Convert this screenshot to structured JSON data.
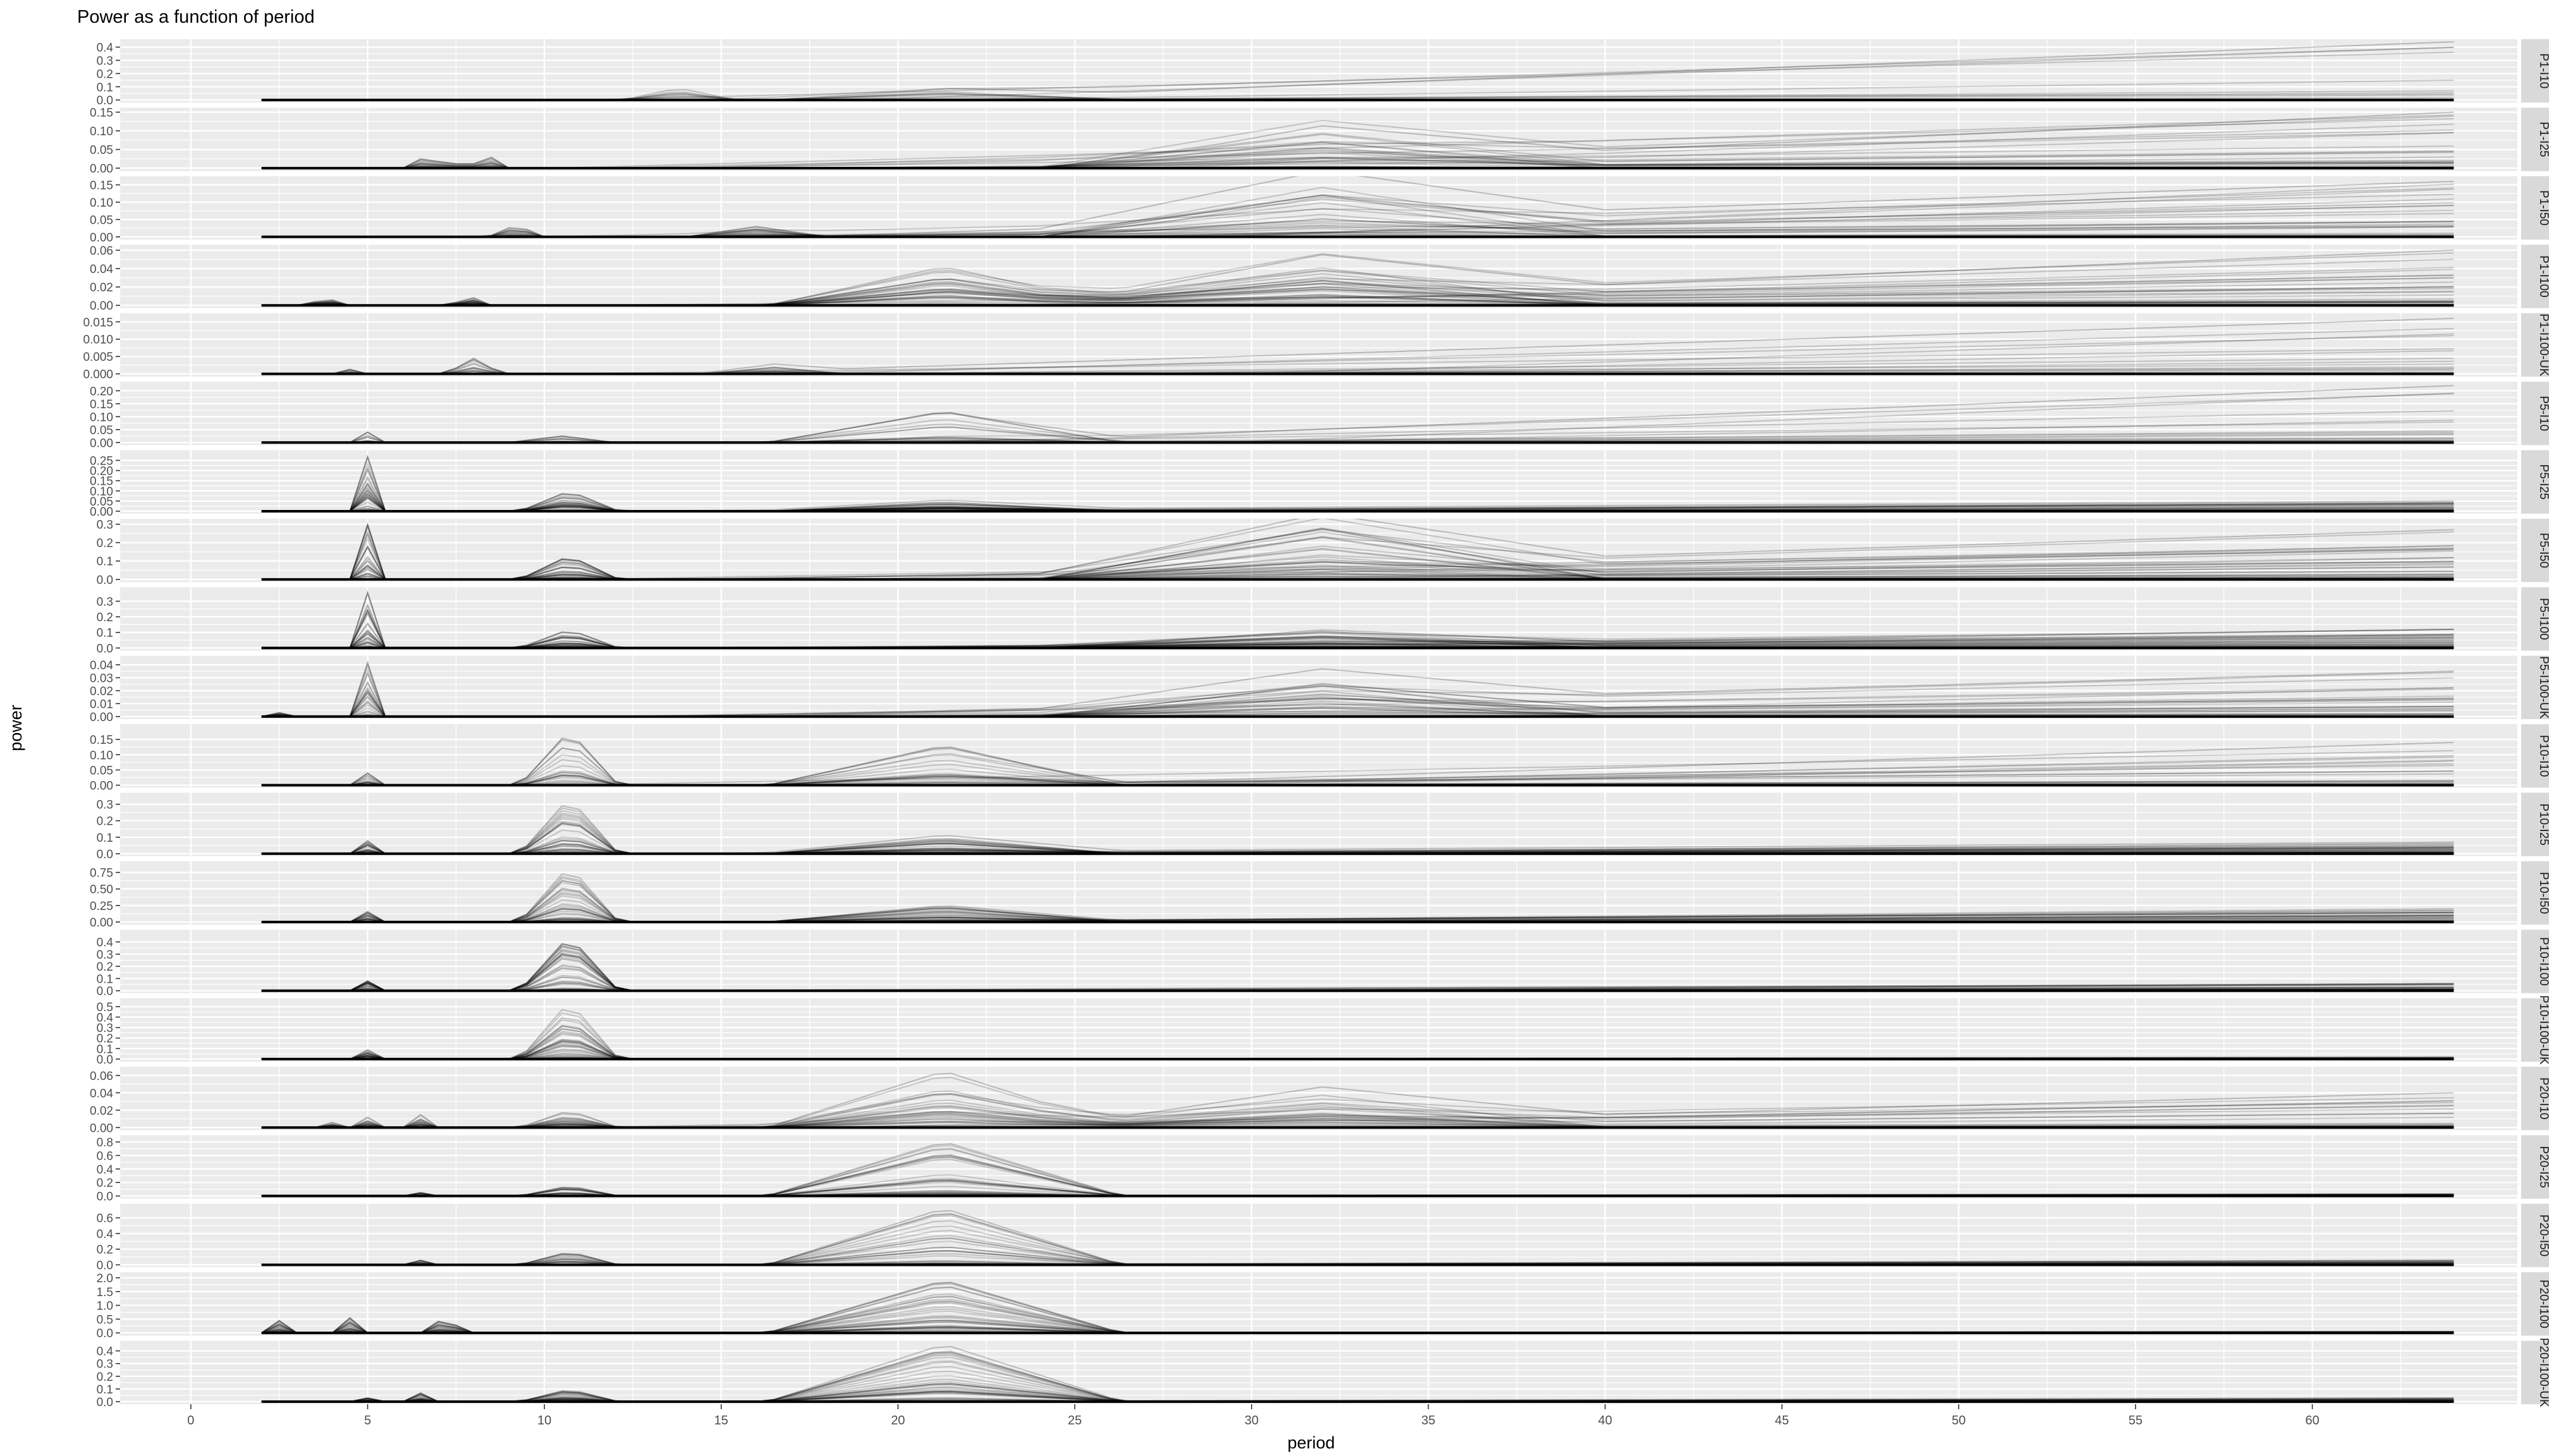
{
  "chart_data": {
    "type": "line",
    "title": "Power as a function of period",
    "xlabel": "period",
    "ylabel": "power",
    "xlim": [
      -2,
      65.8
    ],
    "x_ticks": [
      0,
      5,
      10,
      15,
      20,
      25,
      30,
      35,
      40,
      45,
      50,
      55,
      60
    ],
    "x_range_of_data": [
      2,
      64
    ],
    "style": {
      "panel_background": "#ebebeb",
      "grid_color": "#ffffff",
      "strip_background": "#d9d9d9",
      "line_color": "#000000",
      "grid": true,
      "legend": "none"
    },
    "panels": [
      {
        "label": "P1-I10",
        "yticks": [
          0.0,
          0.1,
          0.2,
          0.3,
          0.4
        ],
        "ylim": [
          -0.02,
          0.46
        ],
        "traces": 15,
        "peaks": [
          {
            "x": 13.8,
            "y": 0.09,
            "w": 1.6
          },
          {
            "x": 21.3,
            "y": 0.08,
            "w": 5
          }
        ],
        "tail_max": 0.44
      },
      {
        "label": "P1-I25",
        "yticks": [
          0.0,
          0.05,
          0.1,
          0.15
        ],
        "ylim": [
          -0.008,
          0.162
        ],
        "traces": 30,
        "peaks": [
          {
            "x": 6.5,
            "y": 0.025,
            "w": 0.5
          },
          {
            "x": 7.2,
            "y": 0.03,
            "w": 0.5
          },
          {
            "x": 8.4,
            "y": 0.035,
            "w": 0.6
          },
          {
            "x": 32,
            "y": 0.1,
            "w": 8
          }
        ],
        "tail_max": 0.15
      },
      {
        "label": "P1-I50",
        "yticks": [
          0.0,
          0.05,
          0.1,
          0.15
        ],
        "ylim": [
          -0.008,
          0.175
        ],
        "traces": 30,
        "peaks": [
          {
            "x": 9.2,
            "y": 0.035,
            "w": 0.8
          },
          {
            "x": 16,
            "y": 0.03,
            "w": 2
          },
          {
            "x": 32,
            "y": 0.14,
            "w": 8
          }
        ],
        "tail_max": 0.16
      },
      {
        "label": "P1-I100",
        "yticks": [
          0.0,
          0.02,
          0.04,
          0.06
        ],
        "ylim": [
          -0.003,
          0.066
        ],
        "traces": 40,
        "peaks": [
          {
            "x": 3.5,
            "y": 0.004,
            "w": 0.2
          },
          {
            "x": 4.0,
            "y": 0.006,
            "w": 0.2
          },
          {
            "x": 4.3,
            "y": 0.008,
            "w": 0.2
          },
          {
            "x": 7.9,
            "y": 0.01,
            "w": 0.6
          },
          {
            "x": 21.3,
            "y": 0.042,
            "w": 5
          },
          {
            "x": 32,
            "y": 0.045,
            "w": 8
          }
        ],
        "tail_max": 0.06
      },
      {
        "label": "P1-I100-UK",
        "yticks": [
          0.0,
          0.005,
          0.01,
          0.015
        ],
        "ylim": [
          -0.0008,
          0.0175
        ],
        "traces": 20,
        "peaks": [
          {
            "x": 4.6,
            "y": 0.002,
            "w": 0.3
          },
          {
            "x": 8.0,
            "y": 0.0045,
            "w": 0.8
          },
          {
            "x": 16.5,
            "y": 0.002,
            "w": 2
          }
        ],
        "tail_max": 0.016
      },
      {
        "label": "P5-I10",
        "yticks": [
          0.0,
          0.05,
          0.1,
          0.15,
          0.2
        ],
        "ylim": [
          -0.01,
          0.235
        ],
        "traces": 20,
        "peaks": [
          {
            "x": 5.0,
            "y": 0.04,
            "w": 0.35
          },
          {
            "x": 10.5,
            "y": 0.025,
            "w": 1.5
          },
          {
            "x": 21.3,
            "y": 0.12,
            "w": 5
          }
        ],
        "tail_max": 0.22
      },
      {
        "label": "P5-I25",
        "yticks": [
          0.0,
          0.05,
          0.1,
          0.15,
          0.2,
          0.25
        ],
        "ylim": [
          -0.012,
          0.3
        ],
        "traces": 40,
        "peaks": [
          {
            "x": 5.0,
            "y": 0.27,
            "w": 0.3
          },
          {
            "x": 10.7,
            "y": 0.1,
            "w": 1.4
          },
          {
            "x": 21.3,
            "y": 0.045,
            "w": 5
          }
        ],
        "tail_max": 0.05
      },
      {
        "label": "P5-I50",
        "yticks": [
          0.0,
          0.1,
          0.2,
          0.3
        ],
        "ylim": [
          -0.015,
          0.33
        ],
        "traces": 40,
        "peaks": [
          {
            "x": 5.0,
            "y": 0.3,
            "w": 0.3
          },
          {
            "x": 10.7,
            "y": 0.13,
            "w": 1.4
          },
          {
            "x": 32,
            "y": 0.28,
            "w": 8
          }
        ],
        "tail_max": 0.27
      },
      {
        "label": "P5-I100",
        "yticks": [
          0.0,
          0.1,
          0.2,
          0.3
        ],
        "ylim": [
          -0.017,
          0.39
        ],
        "traces": 40,
        "peaks": [
          {
            "x": 5.0,
            "y": 0.36,
            "w": 0.3
          },
          {
            "x": 10.7,
            "y": 0.12,
            "w": 1.4
          },
          {
            "x": 32,
            "y": 0.1,
            "w": 8
          }
        ],
        "tail_max": 0.12
      },
      {
        "label": "P5-I100-UK",
        "yticks": [
          0.0,
          0.01,
          0.02,
          0.03,
          0.04
        ],
        "ylim": [
          -0.002,
          0.047
        ],
        "traces": 30,
        "peaks": [
          {
            "x": 2.5,
            "y": 0.003,
            "w": 0.2
          },
          {
            "x": 5.0,
            "y": 0.042,
            "w": 0.3
          },
          {
            "x": 32,
            "y": 0.025,
            "w": 8
          }
        ],
        "tail_max": 0.035
      },
      {
        "label": "P10-I10",
        "yticks": [
          0.0,
          0.05,
          0.1,
          0.15
        ],
        "ylim": [
          -0.008,
          0.2
        ],
        "traces": 25,
        "peaks": [
          {
            "x": 5.0,
            "y": 0.04,
            "w": 0.3
          },
          {
            "x": 10.7,
            "y": 0.18,
            "w": 1.4
          },
          {
            "x": 21.3,
            "y": 0.13,
            "w": 5
          }
        ],
        "tail_max": 0.14
      },
      {
        "label": "P10-I25",
        "yticks": [
          0.0,
          0.1,
          0.2,
          0.3
        ],
        "ylim": [
          -0.015,
          0.37
        ],
        "traces": 40,
        "peaks": [
          {
            "x": 5.0,
            "y": 0.08,
            "w": 0.3
          },
          {
            "x": 10.7,
            "y": 0.34,
            "w": 1.4
          },
          {
            "x": 21.3,
            "y": 0.1,
            "w": 5
          }
        ],
        "tail_max": 0.07
      },
      {
        "label": "P10-I50",
        "yticks": [
          0.0,
          0.25,
          0.5,
          0.75
        ],
        "ylim": [
          -0.04,
          0.92
        ],
        "traces": 40,
        "peaks": [
          {
            "x": 5.0,
            "y": 0.16,
            "w": 0.3
          },
          {
            "x": 10.7,
            "y": 0.85,
            "w": 1.4
          },
          {
            "x": 21.3,
            "y": 0.25,
            "w": 5
          }
        ],
        "tail_max": 0.2
      },
      {
        "label": "P10-I100",
        "yticks": [
          0.0,
          0.1,
          0.2,
          0.3,
          0.4
        ],
        "ylim": [
          -0.02,
          0.5
        ],
        "traces": 40,
        "peaks": [
          {
            "x": 5.0,
            "y": 0.08,
            "w": 0.3
          },
          {
            "x": 10.7,
            "y": 0.45,
            "w": 1.4
          }
        ],
        "tail_max": 0.06
      },
      {
        "label": "P10-I100-UK",
        "yticks": [
          0.0,
          0.1,
          0.2,
          0.3,
          0.4,
          0.5
        ],
        "ylim": [
          -0.025,
          0.58
        ],
        "traces": 40,
        "peaks": [
          {
            "x": 5.0,
            "y": 0.09,
            "w": 0.3
          },
          {
            "x": 10.7,
            "y": 0.55,
            "w": 1.4
          }
        ],
        "tail_max": 0.02
      },
      {
        "label": "P20-I10",
        "yticks": [
          0.0,
          0.02,
          0.04,
          0.06
        ],
        "ylim": [
          -0.003,
          0.07
        ],
        "traces": 30,
        "peaks": [
          {
            "x": 4.0,
            "y": 0.006,
            "w": 0.2
          },
          {
            "x": 5.0,
            "y": 0.012,
            "w": 0.3
          },
          {
            "x": 6.5,
            "y": 0.015,
            "w": 0.3
          },
          {
            "x": 10.7,
            "y": 0.02,
            "w": 1.4
          },
          {
            "x": 21.3,
            "y": 0.065,
            "w": 5
          },
          {
            "x": 32,
            "y": 0.04,
            "w": 8
          }
        ],
        "tail_max": 0.04
      },
      {
        "label": "P20-I25",
        "yticks": [
          0.0,
          0.2,
          0.4,
          0.6,
          0.8
        ],
        "ylim": [
          -0.04,
          0.9
        ],
        "traces": 40,
        "peaks": [
          {
            "x": 6.5,
            "y": 0.05,
            "w": 0.3
          },
          {
            "x": 10.7,
            "y": 0.15,
            "w": 1.4
          },
          {
            "x": 21.3,
            "y": 0.8,
            "w": 5
          }
        ],
        "tail_max": 0.03
      },
      {
        "label": "P20-I50",
        "yticks": [
          0.0,
          0.2,
          0.4,
          0.6
        ],
        "ylim": [
          -0.03,
          0.78
        ],
        "traces": 40,
        "peaks": [
          {
            "x": 6.5,
            "y": 0.06,
            "w": 0.3
          },
          {
            "x": 10.7,
            "y": 0.17,
            "w": 1.4
          },
          {
            "x": 21.3,
            "y": 0.72,
            "w": 5
          }
        ],
        "tail_max": 0.06
      },
      {
        "label": "P20-I100",
        "yticks": [
          0.0,
          0.5,
          1.0,
          1.5,
          2.0
        ],
        "ylim": [
          -0.1,
          2.2
        ],
        "traces": 40,
        "peaks": [
          {
            "x": 2.5,
            "y": 0.45,
            "w": 0.2
          },
          {
            "x": 4.5,
            "y": 0.55,
            "w": 0.4
          },
          {
            "x": 7.2,
            "y": 0.7,
            "w": 0.5
          },
          {
            "x": 21.3,
            "y": 1.9,
            "w": 5
          }
        ],
        "tail_max": 0.05
      },
      {
        "label": "P20-I100-UK",
        "yticks": [
          0.0,
          0.1,
          0.2,
          0.3,
          0.4
        ],
        "ylim": [
          -0.02,
          0.48
        ],
        "traces": 40,
        "peaks": [
          {
            "x": 5.0,
            "y": 0.03,
            "w": 0.3
          },
          {
            "x": 6.5,
            "y": 0.07,
            "w": 0.3
          },
          {
            "x": 10.7,
            "y": 0.1,
            "w": 1.4
          },
          {
            "x": 21.3,
            "y": 0.45,
            "w": 5
          }
        ],
        "tail_max": 0.03
      }
    ]
  }
}
